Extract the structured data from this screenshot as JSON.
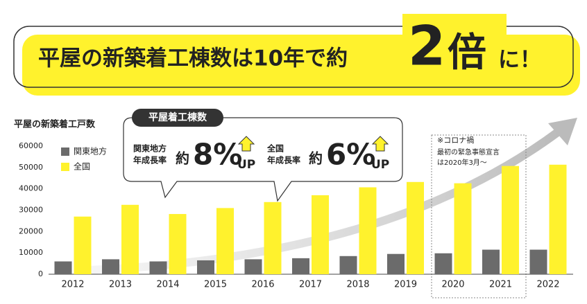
{
  "banner": {
    "text": "平屋の新築着工棟数は10年で約",
    "big": "2",
    "big_unit": "倍",
    "tail": "に！"
  },
  "chart_data": {
    "type": "bar",
    "y_axis_label": "平屋の新築着工戸数",
    "categories": [
      "2012",
      "2013",
      "2014",
      "2015",
      "2016",
      "2017",
      "2018",
      "2019",
      "2020",
      "2021",
      "2022"
    ],
    "series": [
      {
        "name": "関東地方",
        "color": "#6b6b6b",
        "values": [
          6000,
          7000,
          6000,
          6500,
          7000,
          7500,
          8500,
          9500,
          9800,
          11500,
          11500
        ]
      },
      {
        "name": "全国",
        "color": "#fff22d",
        "values": [
          27000,
          32500,
          28200,
          31000,
          33800,
          37000,
          40700,
          43200,
          42600,
          50700,
          51300
        ]
      }
    ],
    "ylim": [
      0,
      60000
    ],
    "yticks": [
      0,
      10000,
      20000,
      30000,
      40000,
      50000,
      60000
    ],
    "legend": "upper left",
    "callout": {
      "title": "平屋着工棟数",
      "items": [
        {
          "label1": "関東地方",
          "label2": "年成長率",
          "prefix": "約",
          "value": "8%",
          "suffix": "UP"
        },
        {
          "label1": "全国",
          "label2": "年成長率",
          "prefix": "約",
          "value": "6%",
          "suffix": "UP"
        }
      ]
    },
    "annotation": [
      "※コロナ禍",
      "最初の緊急事態宣言",
      "は2020年3月～"
    ]
  }
}
